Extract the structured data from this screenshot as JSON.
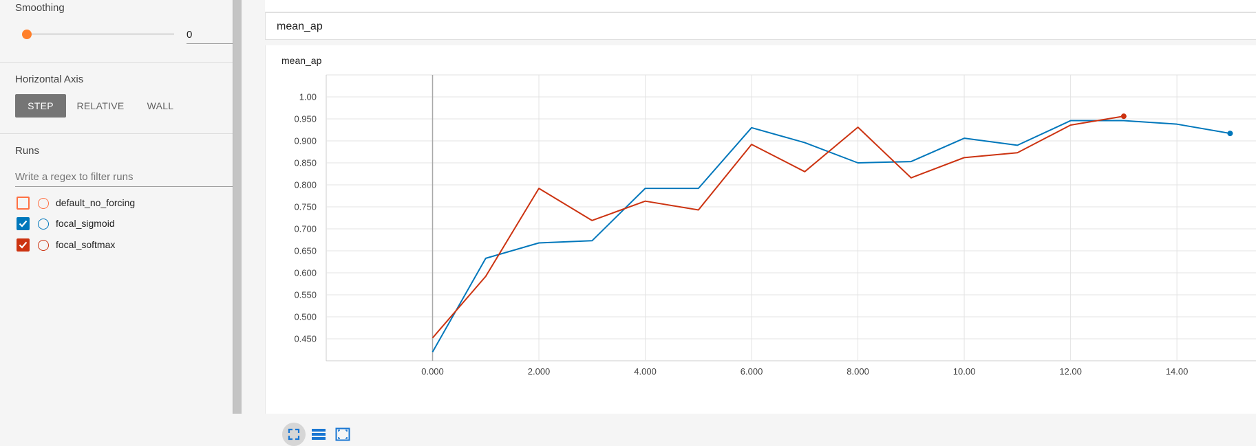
{
  "sidebar": {
    "smoothing": {
      "title": "Smoothing",
      "value": "0",
      "level": 0
    },
    "horizontal_axis": {
      "title": "Horizontal Axis",
      "options": [
        "STEP",
        "RELATIVE",
        "WALL"
      ],
      "selected": "STEP"
    },
    "runs": {
      "title": "Runs",
      "filter_placeholder": "Write a regex to filter runs",
      "items": [
        {
          "label": "default_no_forcing",
          "checked": false,
          "color": "#ff7043"
        },
        {
          "label": "focal_sigmoid",
          "checked": true,
          "color": "#0077bb"
        },
        {
          "label": "focal_softmax",
          "checked": true,
          "color": "#cc3311"
        }
      ]
    }
  },
  "main": {
    "group_title": "mean_ap",
    "card": {
      "title": "mean_ap",
      "footer_icons": [
        "fullscreen-icon",
        "data-table-icon",
        "fit-domain-icon"
      ]
    }
  },
  "chart_data": {
    "type": "line",
    "title": "mean_ap",
    "xlabel": "",
    "ylabel": "",
    "xlim": [
      -2,
      15.5
    ],
    "ylim": [
      0.4,
      1.05
    ],
    "x_ticks": [
      "0.000",
      "2.000",
      "4.000",
      "6.000",
      "8.000",
      "10.00",
      "12.00",
      "14.00"
    ],
    "y_ticks": [
      "0.450",
      "0.500",
      "0.550",
      "0.600",
      "0.650",
      "0.700",
      "0.750",
      "0.800",
      "0.850",
      "0.900",
      "0.950",
      "1.00"
    ],
    "grid": true,
    "series": [
      {
        "name": "focal_sigmoid",
        "color": "#0077bb",
        "x": [
          0,
          1,
          2,
          3,
          4,
          5,
          6,
          7,
          8,
          9,
          10,
          11,
          12,
          13,
          14,
          15
        ],
        "y": [
          0.42,
          0.633,
          0.668,
          0.673,
          0.792,
          0.792,
          0.93,
          0.896,
          0.85,
          0.853,
          0.906,
          0.89,
          0.946,
          0.946,
          0.938,
          0.917
        ]
      },
      {
        "name": "focal_softmax",
        "color": "#cc3311",
        "x": [
          0,
          1,
          2,
          3,
          4,
          5,
          6,
          7,
          8,
          9,
          10,
          11,
          12,
          13
        ],
        "y": [
          0.452,
          0.592,
          0.792,
          0.719,
          0.763,
          0.743,
          0.892,
          0.83,
          0.931,
          0.816,
          0.862,
          0.873,
          0.936,
          0.956
        ]
      }
    ]
  }
}
